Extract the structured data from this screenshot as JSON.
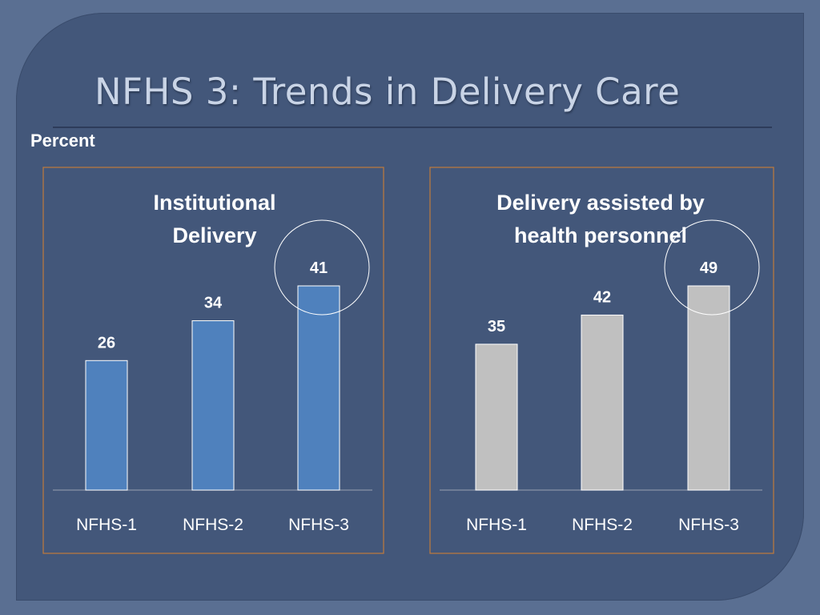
{
  "slide": {
    "title": "NFHS 3: Trends in Delivery Care",
    "unit_label": "Percent"
  },
  "chart_data": [
    {
      "type": "bar",
      "title": "Institutional Delivery",
      "title_lines": [
        "Institutional",
        "Delivery"
      ],
      "categories": [
        "NFHS-1",
        "NFHS-2",
        "NFHS-3"
      ],
      "values": [
        26,
        34,
        41
      ],
      "ylabel": "Percent",
      "ylim": [
        0,
        50
      ],
      "bar_color": "#4f81bd",
      "highlight": "NFHS-3",
      "grid": false
    },
    {
      "type": "bar",
      "title": "Delivery assisted by health personnel",
      "title_lines": [
        "Delivery assisted by",
        "health personnel"
      ],
      "categories": [
        "NFHS-1",
        "NFHS-2",
        "NFHS-3"
      ],
      "values": [
        35,
        42,
        49
      ],
      "ylabel": "Percent",
      "ylim": [
        0,
        60
      ],
      "bar_color": "#c0c0c0",
      "highlight": "NFHS-3",
      "grid": false
    }
  ]
}
